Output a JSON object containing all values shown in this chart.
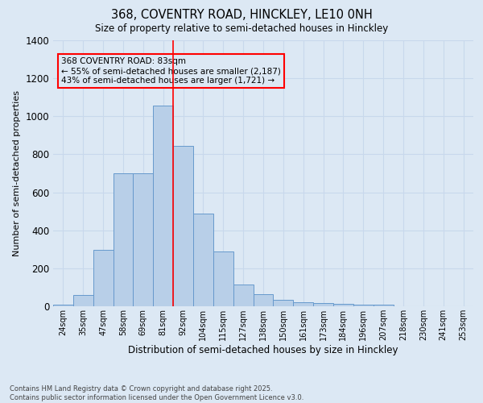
{
  "title1": "368, COVENTRY ROAD, HINCKLEY, LE10 0NH",
  "title2": "Size of property relative to semi-detached houses in Hinckley",
  "xlabel": "Distribution of semi-detached houses by size in Hinckley",
  "ylabel": "Number of semi-detached properties",
  "bins": [
    "24sqm",
    "35sqm",
    "47sqm",
    "58sqm",
    "69sqm",
    "81sqm",
    "92sqm",
    "104sqm",
    "115sqm",
    "127sqm",
    "138sqm",
    "150sqm",
    "161sqm",
    "173sqm",
    "184sqm",
    "196sqm",
    "207sqm",
    "218sqm",
    "230sqm",
    "241sqm",
    "253sqm"
  ],
  "values": [
    10,
    60,
    295,
    700,
    700,
    1055,
    845,
    490,
    290,
    115,
    65,
    35,
    20,
    18,
    12,
    8,
    8,
    0,
    0,
    0,
    0
  ],
  "bar_color": "#b8cfe8",
  "bar_edge_color": "#6699cc",
  "grid_color": "#c8d8ec",
  "bg_color": "#dce8f4",
  "annotation_text": "368 COVENTRY ROAD: 83sqm\n← 55% of semi-detached houses are smaller (2,187)\n43% of semi-detached houses are larger (1,721) →",
  "vline_x": 5.5,
  "ylim": [
    0,
    1400
  ],
  "yticks": [
    0,
    200,
    400,
    600,
    800,
    1000,
    1200,
    1400
  ],
  "footer_text": "Contains HM Land Registry data © Crown copyright and database right 2025.\nContains public sector information licensed under the Open Government Licence v3.0."
}
